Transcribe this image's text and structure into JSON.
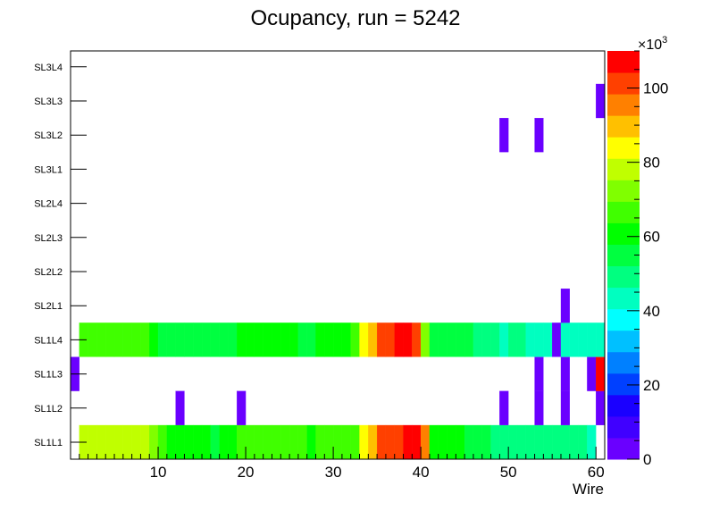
{
  "chart_data": {
    "type": "heatmap",
    "title": "Ocupancy, run = 5242",
    "xlabel": "Wire",
    "ylabel": "",
    "xlim": [
      0,
      61
    ],
    "x_ticks": [
      10,
      20,
      30,
      40,
      50,
      60
    ],
    "y_categories": [
      "SL1L1",
      "SL1L2",
      "SL1L3",
      "SL1L4",
      "SL2L1",
      "SL2L2",
      "SL2L3",
      "SL2L4",
      "SL3L1",
      "SL3L2",
      "SL3L3",
      "SL3L4"
    ],
    "z_scale_label": "×10",
    "z_scale_exponent": "3",
    "zlim": [
      0,
      110000
    ],
    "z_ticks": [
      0,
      20,
      40,
      60,
      80,
      100
    ],
    "palette": [
      "#6a00ff",
      "#4000ff",
      "#1a00ff",
      "#0040ff",
      "#0080ff",
      "#00c0ff",
      "#00ffff",
      "#00ffc0",
      "#00ff80",
      "#00ff40",
      "#00ff00",
      "#40ff00",
      "#80ff00",
      "#c0ff00",
      "#ffff00",
      "#ffc000",
      "#ff8000",
      "#ff4000",
      "#ff0000"
    ],
    "rows": [
      {
        "layer": "SL1L1",
        "bins": [
          [
            1,
            77000
          ],
          [
            2,
            77000
          ],
          [
            3,
            77000
          ],
          [
            4,
            77000
          ],
          [
            5,
            77000
          ],
          [
            6,
            81000
          ],
          [
            7,
            77000
          ],
          [
            8,
            77000
          ],
          [
            9,
            73000
          ],
          [
            10,
            68000
          ],
          [
            11,
            63000
          ],
          [
            12,
            63000
          ],
          [
            13,
            63000
          ],
          [
            14,
            63000
          ],
          [
            15,
            63000
          ],
          [
            16,
            56000
          ],
          [
            17,
            63000
          ],
          [
            18,
            63000
          ],
          [
            19,
            68000
          ],
          [
            20,
            68000
          ],
          [
            21,
            68000
          ],
          [
            22,
            68000
          ],
          [
            23,
            68000
          ],
          [
            24,
            68000
          ],
          [
            25,
            68000
          ],
          [
            26,
            68000
          ],
          [
            27,
            63000
          ],
          [
            28,
            68000
          ],
          [
            29,
            68000
          ],
          [
            30,
            68000
          ],
          [
            31,
            68000
          ],
          [
            32,
            68000
          ],
          [
            33,
            85000
          ],
          [
            34,
            90000
          ],
          [
            35,
            99000
          ],
          [
            36,
            100000
          ],
          [
            37,
            104000
          ],
          [
            38,
            108000
          ],
          [
            39,
            108000
          ],
          [
            40,
            95000
          ],
          [
            41,
            63000
          ],
          [
            42,
            63000
          ],
          [
            43,
            63000
          ],
          [
            44,
            63000
          ],
          [
            45,
            56000
          ],
          [
            46,
            56000
          ],
          [
            47,
            56000
          ],
          [
            48,
            51000
          ],
          [
            49,
            51000
          ],
          [
            50,
            51000
          ],
          [
            51,
            51000
          ],
          [
            52,
            51000
          ],
          [
            53,
            51000
          ],
          [
            54,
            51000
          ],
          [
            55,
            51000
          ],
          [
            56,
            51000
          ],
          [
            57,
            51000
          ],
          [
            58,
            51000
          ],
          [
            59,
            45000
          ]
        ]
      },
      {
        "layer": "SL1L2",
        "bins": [
          [
            12,
            3000
          ],
          [
            19,
            3000
          ],
          [
            49,
            3000
          ],
          [
            53,
            3000
          ],
          [
            56,
            3000
          ],
          [
            60,
            3000
          ]
        ]
      },
      {
        "layer": "SL1L3",
        "bins": [
          [
            0,
            3000
          ],
          [
            53,
            3000
          ],
          [
            56,
            3000
          ],
          [
            59,
            3000
          ],
          [
            60,
            108000
          ]
        ]
      },
      {
        "layer": "SL1L4",
        "bins": [
          [
            1,
            68000
          ],
          [
            2,
            68000
          ],
          [
            3,
            68000
          ],
          [
            4,
            68000
          ],
          [
            5,
            68000
          ],
          [
            6,
            68000
          ],
          [
            7,
            68000
          ],
          [
            8,
            68000
          ],
          [
            9,
            63000
          ],
          [
            10,
            56000
          ],
          [
            11,
            56000
          ],
          [
            12,
            56000
          ],
          [
            13,
            56000
          ],
          [
            14,
            56000
          ],
          [
            15,
            56000
          ],
          [
            16,
            56000
          ],
          [
            17,
            56000
          ],
          [
            18,
            56000
          ],
          [
            19,
            63000
          ],
          [
            20,
            63000
          ],
          [
            21,
            63000
          ],
          [
            22,
            63000
          ],
          [
            23,
            63000
          ],
          [
            24,
            63000
          ],
          [
            25,
            63000
          ],
          [
            26,
            56000
          ],
          [
            27,
            56000
          ],
          [
            28,
            63000
          ],
          [
            29,
            63000
          ],
          [
            30,
            63000
          ],
          [
            31,
            63000
          ],
          [
            32,
            68000
          ],
          [
            33,
            85000
          ],
          [
            34,
            90000
          ],
          [
            35,
            99000
          ],
          [
            36,
            104000
          ],
          [
            37,
            108000
          ],
          [
            38,
            108000
          ],
          [
            39,
            104000
          ],
          [
            40,
            73000
          ],
          [
            41,
            56000
          ],
          [
            42,
            56000
          ],
          [
            43,
            56000
          ],
          [
            44,
            56000
          ],
          [
            45,
            56000
          ],
          [
            46,
            51000
          ],
          [
            47,
            51000
          ],
          [
            48,
            51000
          ],
          [
            49,
            45000
          ],
          [
            50,
            51000
          ],
          [
            51,
            51000
          ],
          [
            52,
            45000
          ],
          [
            53,
            45000
          ],
          [
            54,
            45000
          ],
          [
            55,
            3000
          ],
          [
            56,
            45000
          ],
          [
            57,
            45000
          ],
          [
            58,
            45000
          ],
          [
            59,
            45000
          ],
          [
            60,
            45000
          ]
        ]
      },
      {
        "layer": "SL2L1",
        "bins": [
          [
            56,
            3000
          ]
        ]
      },
      {
        "layer": "SL2L2",
        "bins": []
      },
      {
        "layer": "SL2L3",
        "bins": []
      },
      {
        "layer": "SL2L4",
        "bins": []
      },
      {
        "layer": "SL3L1",
        "bins": []
      },
      {
        "layer": "SL3L2",
        "bins": [
          [
            49,
            3000
          ],
          [
            53,
            3000
          ]
        ]
      },
      {
        "layer": "SL3L3",
        "bins": [
          [
            60,
            3000
          ]
        ]
      },
      {
        "layer": "SL3L4",
        "bins": []
      }
    ]
  }
}
